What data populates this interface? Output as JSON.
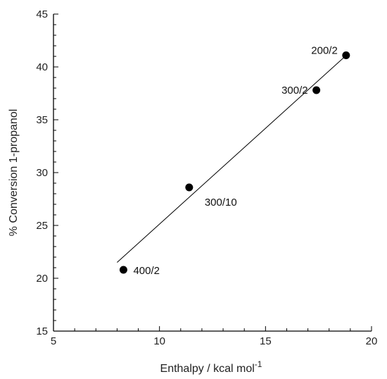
{
  "chart_data": {
    "type": "scatter",
    "title": "",
    "xlabel": "Enthalpy / kcal mol",
    "xlabel_superscript": "-1",
    "ylabel": "% Conversion  1-propanol",
    "xlim": [
      5,
      20
    ],
    "ylim": [
      15,
      45
    ],
    "x_ticks": [
      5,
      10,
      15,
      20
    ],
    "y_ticks": [
      15,
      20,
      25,
      30,
      35,
      40,
      45
    ],
    "grid": false,
    "points": [
      {
        "label": "400/2",
        "x": 8.3,
        "y": 20.8
      },
      {
        "label": "300/10",
        "x": 11.4,
        "y": 28.6
      },
      {
        "label": "300/2",
        "x": 17.4,
        "y": 37.8
      },
      {
        "label": "200/2",
        "x": 18.8,
        "y": 41.1
      }
    ],
    "fit_line": {
      "x": [
        8.0,
        18.7
      ],
      "y": [
        21.5,
        40.9
      ]
    }
  }
}
